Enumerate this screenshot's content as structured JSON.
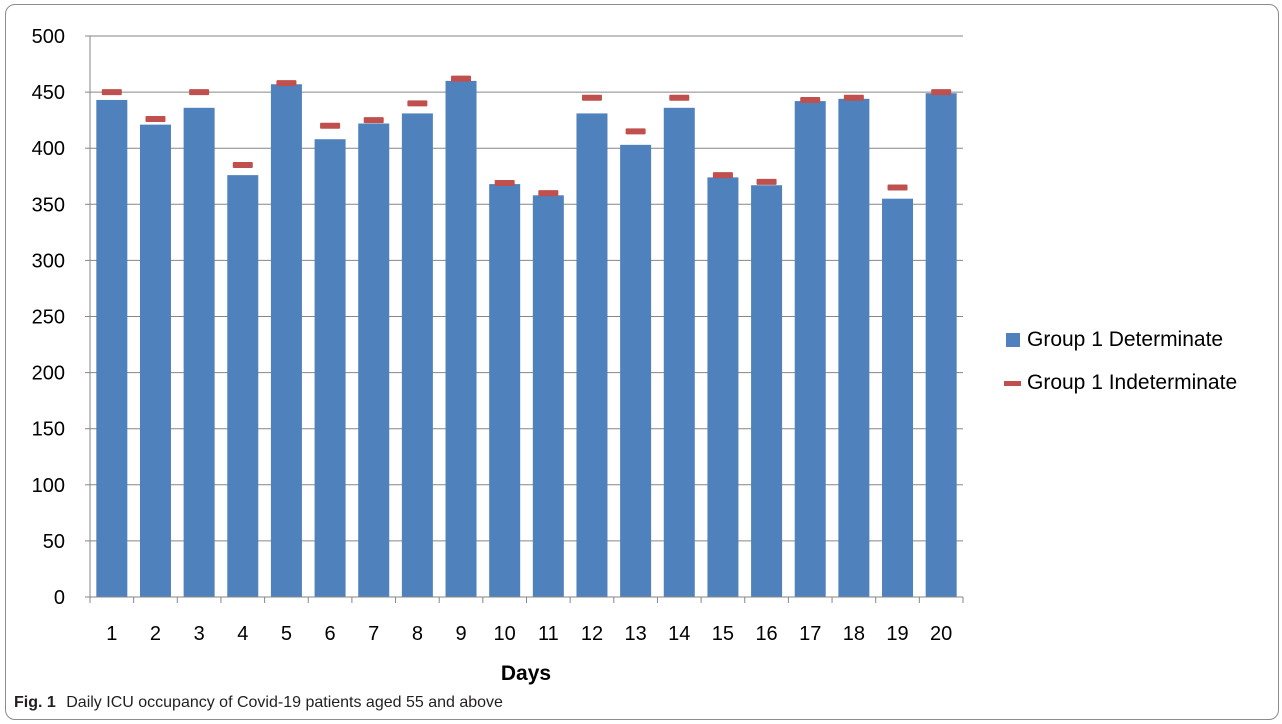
{
  "chart_data": {
    "type": "bar",
    "title": "",
    "xlabel": "Days",
    "ylabel": "",
    "ylim": [
      0,
      500
    ],
    "yticks": [
      0,
      50,
      100,
      150,
      200,
      250,
      300,
      350,
      400,
      450,
      500
    ],
    "grid": true,
    "legend_position": "right",
    "categories": [
      "1",
      "2",
      "3",
      "4",
      "5",
      "6",
      "7",
      "8",
      "9",
      "10",
      "11",
      "12",
      "13",
      "14",
      "15",
      "16",
      "17",
      "18",
      "19",
      "20"
    ],
    "series": [
      {
        "name": "Group 1 Determinate",
        "kind": "bar",
        "color": "#4f81bd",
        "values": [
          443,
          421,
          436,
          376,
          457,
          408,
          422,
          431,
          460,
          368,
          358,
          431,
          403,
          436,
          374,
          367,
          442,
          444,
          355,
          449
        ]
      },
      {
        "name": "Group 1 Indeterminate",
        "kind": "marker-dash",
        "color": "#c0504d",
        "values": [
          450,
          426,
          450,
          385,
          458,
          420,
          425,
          440,
          462,
          369,
          360,
          445,
          415,
          445,
          376,
          370,
          443,
          445,
          365,
          450
        ]
      }
    ]
  },
  "caption": {
    "label": "Fig. 1",
    "text": "Daily ICU occupancy of Covid-19 patients aged 55 and above"
  }
}
